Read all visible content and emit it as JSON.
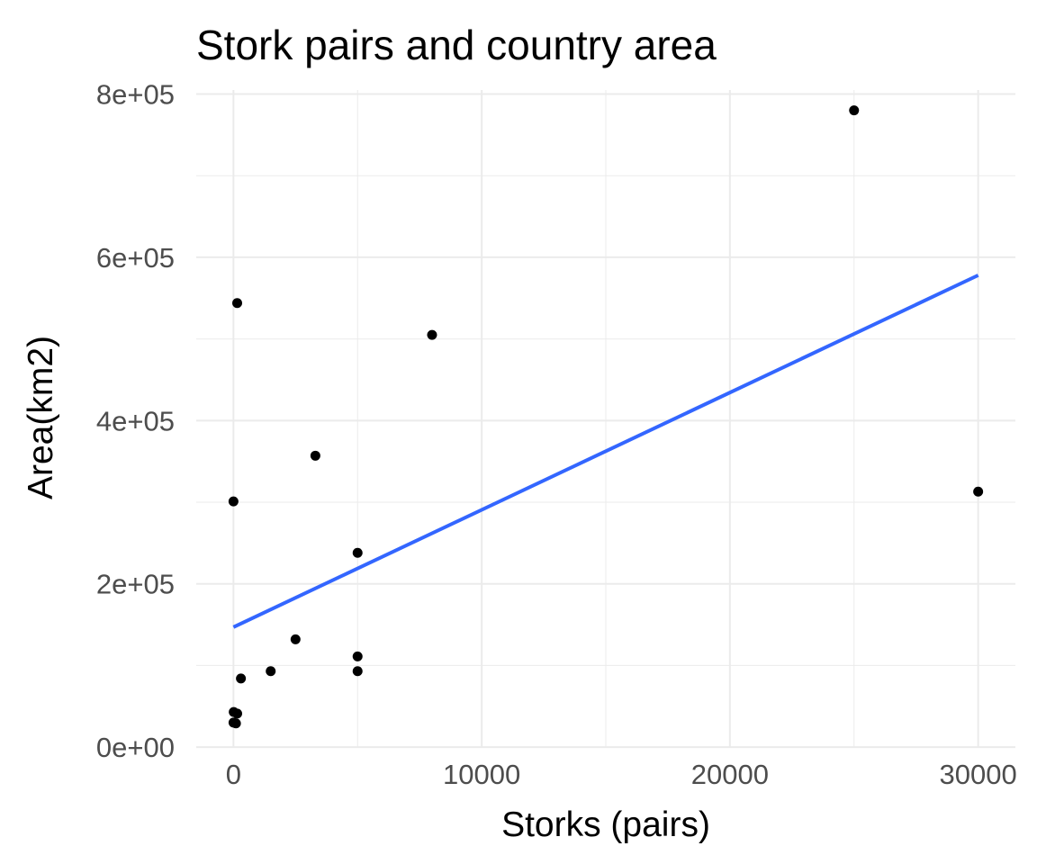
{
  "chart_data": {
    "type": "scatter",
    "title": "Stork pairs and country area",
    "xlabel": "Storks (pairs)",
    "ylabel": "Area(km2)",
    "xlim": [
      -1500,
      31500
    ],
    "ylim": [
      -1000,
      805000
    ],
    "x_ticks": [
      0,
      10000,
      20000,
      30000
    ],
    "x_tick_labels": [
      "0",
      "10000",
      "20000",
      "30000"
    ],
    "y_ticks": [
      0,
      200000,
      400000,
      600000,
      800000
    ],
    "y_tick_labels": [
      "0e+00",
      "2e+05",
      "4e+05",
      "6e+05",
      "8e+05"
    ],
    "grid": true,
    "series": [
      {
        "kind": "points",
        "color": "#000000",
        "points": [
          {
            "x": 100,
            "y": 29000
          },
          {
            "x": 0,
            "y": 30000
          },
          {
            "x": 10,
            "y": 43000
          },
          {
            "x": 150,
            "y": 41000
          },
          {
            "x": 300,
            "y": 84000
          },
          {
            "x": 1500,
            "y": 93000
          },
          {
            "x": 2500,
            "y": 132000
          },
          {
            "x": 5000,
            "y": 111000
          },
          {
            "x": 5000,
            "y": 93000
          },
          {
            "x": 5000,
            "y": 238000
          },
          {
            "x": 3300,
            "y": 357000
          },
          {
            "x": 0,
            "y": 301000
          },
          {
            "x": 150,
            "y": 544000
          },
          {
            "x": 8000,
            "y": 505000
          },
          {
            "x": 25000,
            "y": 780000
          },
          {
            "x": 30000,
            "y": 313000
          }
        ]
      },
      {
        "kind": "fit-line",
        "color": "#3366ff",
        "x": [
          0,
          30000
        ],
        "y": [
          147000,
          578000
        ]
      }
    ]
  }
}
